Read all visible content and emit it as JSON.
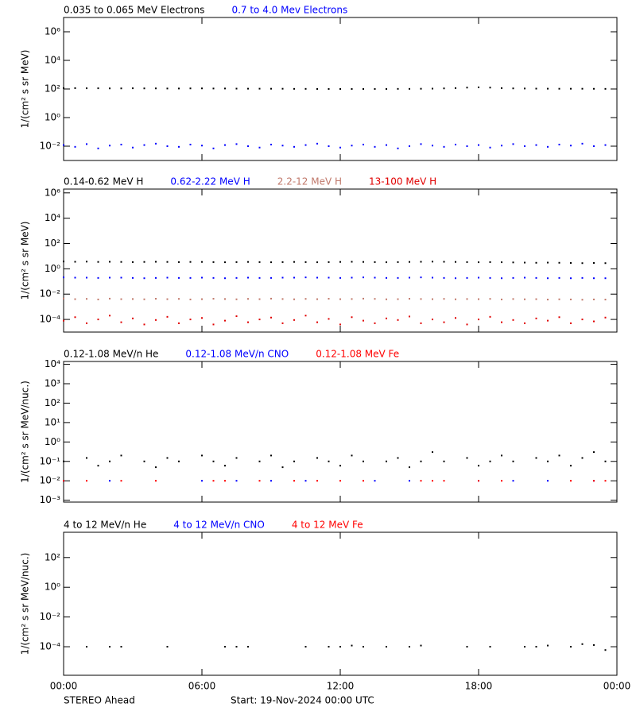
{
  "chart_data": [
    {
      "type": "scatter",
      "log_scale": true,
      "ylabel": "1/(cm² s sr MeV)",
      "xlim": [
        0,
        24
      ],
      "xticks": [
        0,
        6,
        12,
        18,
        24
      ],
      "ylim": [
        0.001,
        10000000
      ],
      "yticks": [
        {
          "value": 0.01,
          "label": "10⁻²"
        },
        {
          "value": 1,
          "label": "10⁰"
        },
        {
          "value": 100,
          "label": "10²"
        },
        {
          "value": 10000,
          "label": "10⁴"
        },
        {
          "value": 1000000,
          "label": "10⁶"
        }
      ],
      "x": [
        0,
        0.5,
        1,
        1.5,
        2,
        2.5,
        3,
        3.5,
        4,
        4.5,
        5,
        5.5,
        6,
        6.5,
        7,
        7.5,
        8,
        8.5,
        9,
        9.5,
        10,
        10.5,
        11,
        11.5,
        12,
        12.5,
        13,
        13.5,
        14,
        14.5,
        15,
        15.5,
        16,
        16.5,
        17,
        17.5,
        18,
        18.5,
        19,
        19.5,
        20,
        20.5,
        21,
        21.5,
        22,
        22.5,
        23,
        23.5
      ],
      "series": [
        {
          "name": "0.035 to 0.065 MeV Electrons",
          "color": "#000000",
          "values": [
            115,
            115,
            112,
            112,
            110,
            110,
            112,
            110,
            110,
            108,
            108,
            110,
            110,
            108,
            108,
            106,
            105,
            105,
            104,
            104,
            102,
            102,
            100,
            100,
            100,
            100,
            100,
            100,
            100,
            102,
            102,
            104,
            106,
            110,
            115,
            125,
            130,
            125,
            115,
            110,
            108,
            106,
            105,
            104,
            104,
            104,
            103,
            102
          ]
        },
        {
          "name": "0.7 to 4.0 Mev Electrons",
          "color": "#0000ff",
          "values": [
            0.012,
            0.009,
            0.014,
            0.007,
            0.011,
            0.013,
            0.008,
            0.012,
            0.015,
            0.01,
            0.009,
            0.013,
            0.011,
            0.007,
            0.012,
            0.014,
            0.01,
            0.008,
            0.013,
            0.011,
            0.009,
            0.012,
            0.015,
            0.01,
            0.008,
            0.011,
            0.013,
            0.009,
            0.012,
            0.007,
            0.01,
            0.014,
            0.011,
            0.009,
            0.013,
            0.01,
            0.012,
            0.008,
            0.011,
            0.014,
            0.01,
            0.012,
            0.009,
            0.013,
            0.011,
            0.015,
            0.01,
            0.012
          ]
        }
      ]
    },
    {
      "type": "scatter",
      "log_scale": true,
      "ylabel": "1/(cm² s sr MeV)",
      "xlim": [
        0,
        24
      ],
      "xticks": [
        0,
        6,
        12,
        18,
        24
      ],
      "ylim": [
        1e-05,
        2000000
      ],
      "yticks": [
        {
          "value": 0.0001,
          "label": "10⁻⁴"
        },
        {
          "value": 0.01,
          "label": "10⁻²"
        },
        {
          "value": 1,
          "label": "10⁰"
        },
        {
          "value": 100,
          "label": "10²"
        },
        {
          "value": 10000,
          "label": "10⁴"
        },
        {
          "value": 1000000,
          "label": "10⁶"
        }
      ],
      "x": [
        0,
        0.5,
        1,
        1.5,
        2,
        2.5,
        3,
        3.5,
        4,
        4.5,
        5,
        5.5,
        6,
        6.5,
        7,
        7.5,
        8,
        8.5,
        9,
        9.5,
        10,
        10.5,
        11,
        11.5,
        12,
        12.5,
        13,
        13.5,
        14,
        14.5,
        15,
        15.5,
        16,
        16.5,
        17,
        17.5,
        18,
        18.5,
        19,
        19.5,
        20,
        20.5,
        21,
        21.5,
        22,
        22.5,
        23,
        23.5
      ],
      "series": [
        {
          "name": "0.14-0.62 MeV H",
          "color": "#000000",
          "values": [
            3.8,
            3.6,
            3.7,
            3.5,
            3.6,
            3.5,
            3.4,
            3.5,
            3.6,
            3.5,
            3.4,
            3.5,
            3.5,
            3.4,
            3.3,
            3.4,
            3.5,
            3.4,
            3.3,
            3.4,
            3.5,
            3.4,
            3.3,
            3.4,
            3.5,
            3.6,
            3.5,
            3.4,
            3.3,
            3.4,
            3.5,
            3.6,
            3.7,
            3.6,
            3.5,
            3.4,
            3.3,
            3.4,
            3.3,
            3.2,
            3.1,
            3,
            3.1,
            3,
            2.9,
            2.8,
            2.9,
            2.8
          ]
        },
        {
          "name": "0.62-2.22 MeV H",
          "color": "#0000ff",
          "values": [
            0.21,
            0.2,
            0.2,
            0.19,
            0.2,
            0.2,
            0.19,
            0.18,
            0.19,
            0.2,
            0.19,
            0.19,
            0.2,
            0.19,
            0.18,
            0.19,
            0.2,
            0.19,
            0.19,
            0.2,
            0.2,
            0.21,
            0.2,
            0.2,
            0.19,
            0.2,
            0.21,
            0.2,
            0.19,
            0.19,
            0.2,
            0.21,
            0.2,
            0.19,
            0.18,
            0.19,
            0.2,
            0.19,
            0.18,
            0.19,
            0.2,
            0.19,
            0.18,
            0.19,
            0.18,
            0.19,
            0.18,
            0.18
          ]
        },
        {
          "name": "2.2-12 MeV H",
          "color": "#c0786a",
          "values": [
            0.0045,
            0.004,
            0.0042,
            0.0038,
            0.0044,
            0.004,
            0.0041,
            0.0039,
            0.0043,
            0.004,
            0.0042,
            0.0038,
            0.004,
            0.0043,
            0.0041,
            0.0039,
            0.0042,
            0.004,
            0.0044,
            0.0041,
            0.0039,
            0.0042,
            0.004,
            0.0043,
            0.004,
            0.0041,
            0.0044,
            0.0042,
            0.0039,
            0.004,
            0.0043,
            0.0041,
            0.004,
            0.0042,
            0.0039,
            0.0041,
            0.004,
            0.0042,
            0.0038,
            0.0041,
            0.0039,
            0.004,
            0.0037,
            0.0039,
            0.0038,
            0.0036,
            0.0038,
            0.0037
          ]
        },
        {
          "name": "13-100 MeV H",
          "color": "#e00000",
          "values": [
            8e-05,
            0.00015,
            5e-05,
            0.0001,
            0.0002,
            6e-05,
            0.00012,
            4e-05,
            9e-05,
            0.00016,
            5e-05,
            0.0001,
            0.00013,
            4e-05,
            8e-05,
            0.00018,
            6e-05,
            0.0001,
            0.00014,
            5e-05,
            9e-05,
            0.0002,
            6e-05,
            0.00011,
            4e-05,
            0.00015,
            8e-05,
            5e-05,
            0.00012,
            9e-05,
            0.00017,
            5e-05,
            0.0001,
            6e-05,
            0.00013,
            4e-05,
            0.0001,
            0.00016,
            6e-05,
            9e-05,
            5e-05,
            0.00012,
            8e-05,
            0.00015,
            5e-05,
            0.0001,
            7e-05,
            0.00014
          ]
        }
      ]
    },
    {
      "type": "scatter",
      "log_scale": true,
      "ylabel": "1/(cm² s sr MeV/nuc.)",
      "xlim": [
        0,
        24
      ],
      "xticks": [
        0,
        6,
        12,
        18,
        24
      ],
      "ylim": [
        0.0008,
        14000
      ],
      "yticks": [
        {
          "value": 0.001,
          "label": "10⁻³"
        },
        {
          "value": 0.01,
          "label": "10⁻²"
        },
        {
          "value": 0.1,
          "label": "10⁻¹"
        },
        {
          "value": 1,
          "label": "10⁰"
        },
        {
          "value": 10,
          "label": "10¹"
        },
        {
          "value": 100,
          "label": "10²"
        },
        {
          "value": 1000,
          "label": "10³"
        },
        {
          "value": 10000,
          "label": "10⁴"
        }
      ],
      "x": [
        0,
        0.5,
        1,
        1.5,
        2,
        2.5,
        3,
        3.5,
        4,
        4.5,
        5,
        5.5,
        6,
        6.5,
        7,
        7.5,
        8,
        8.5,
        9,
        9.5,
        10,
        10.5,
        11,
        11.5,
        12,
        12.5,
        13,
        13.5,
        14,
        14.5,
        15,
        15.5,
        16,
        16.5,
        17,
        17.5,
        18,
        18.5,
        19,
        19.5,
        20,
        20.5,
        21,
        21.5,
        22,
        22.5,
        23,
        23.5
      ],
      "series": [
        {
          "name": "0.12-1.08 MeV/n He",
          "color": "#000000",
          "values": [
            0.1,
            null,
            0.15,
            0.06,
            0.1,
            0.2,
            null,
            0.1,
            0.05,
            0.15,
            0.1,
            null,
            0.2,
            0.1,
            0.06,
            0.15,
            null,
            0.1,
            0.2,
            0.05,
            0.1,
            null,
            0.15,
            0.1,
            0.06,
            0.2,
            0.1,
            null,
            0.1,
            0.15,
            0.05,
            0.1,
            0.3,
            0.1,
            null,
            0.15,
            0.06,
            0.1,
            0.2,
            0.1,
            null,
            0.15,
            0.1,
            0.2,
            0.06,
            0.15,
            0.3,
            0.1
          ]
        },
        {
          "name": "0.12-1.08 MeV/n CNO",
          "color": "#0000ff",
          "values": [
            0.01,
            null,
            null,
            null,
            0.01,
            null,
            null,
            null,
            null,
            null,
            null,
            null,
            0.01,
            null,
            null,
            0.01,
            null,
            null,
            0.01,
            null,
            null,
            0.01,
            null,
            null,
            null,
            null,
            null,
            0.01,
            null,
            null,
            0.01,
            null,
            null,
            null,
            null,
            null,
            0.01,
            null,
            null,
            0.01,
            null,
            null,
            0.01,
            null,
            null,
            null,
            0.01,
            null
          ]
        },
        {
          "name": "0.12-1.08 MeV Fe",
          "color": "#ff0000",
          "values": [
            0.01,
            null,
            0.01,
            null,
            null,
            0.01,
            null,
            null,
            0.01,
            null,
            null,
            null,
            null,
            0.01,
            0.01,
            null,
            null,
            0.01,
            null,
            null,
            0.01,
            null,
            0.01,
            null,
            0.01,
            null,
            0.01,
            null,
            null,
            null,
            null,
            0.01,
            0.01,
            0.01,
            null,
            null,
            0.01,
            null,
            0.01,
            null,
            null,
            null,
            null,
            null,
            0.01,
            null,
            0.01,
            0.01
          ]
        }
      ]
    },
    {
      "type": "scatter",
      "log_scale": true,
      "ylabel": "1/(cm² s sr MeV/nuc.)",
      "xlim": [
        0,
        24
      ],
      "xticks": [
        {
          "value": 0,
          "label": "00:00"
        },
        {
          "value": 6,
          "label": "06:00"
        },
        {
          "value": 12,
          "label": "12:00"
        },
        {
          "value": 18,
          "label": "18:00"
        },
        {
          "value": 24,
          "label": "00:00"
        }
      ],
      "ylim": [
        1.2e-06,
        5000
      ],
      "yticks": [
        {
          "value": 0.0001,
          "label": "10⁻⁴"
        },
        {
          "value": 0.01,
          "label": "10⁻²"
        },
        {
          "value": 1,
          "label": "10⁰"
        },
        {
          "value": 100,
          "label": "10²"
        }
      ],
      "x": [
        0,
        0.5,
        1,
        1.5,
        2,
        2.5,
        3,
        3.5,
        4,
        4.5,
        5,
        5.5,
        6,
        6.5,
        7,
        7.5,
        8,
        8.5,
        9,
        9.5,
        10,
        10.5,
        11,
        11.5,
        12,
        12.5,
        13,
        13.5,
        14,
        14.5,
        15,
        15.5,
        16,
        16.5,
        17,
        17.5,
        18,
        18.5,
        19,
        19.5,
        20,
        20.5,
        21,
        21.5,
        22,
        22.5,
        23,
        23.5
      ],
      "series": [
        {
          "name": "4 to 12 MeV/n He",
          "color": "#000000",
          "values": [
            null,
            null,
            0.0001,
            null,
            0.0001,
            0.0001,
            null,
            null,
            null,
            0.0001,
            null,
            null,
            null,
            null,
            0.0001,
            0.0001,
            0.0001,
            null,
            null,
            null,
            null,
            0.0001,
            null,
            0.0001,
            0.0001,
            0.00012,
            0.0001,
            null,
            0.0001,
            null,
            0.0001,
            0.00012,
            null,
            null,
            null,
            0.0001,
            null,
            0.0001,
            null,
            null,
            0.0001,
            0.0001,
            0.00012,
            null,
            0.0001,
            0.00015,
            0.00013,
            6e-05
          ]
        },
        {
          "name": "4 to 12 MeV/n CNO",
          "color": "#0000ff",
          "values": [
            null,
            null,
            null,
            null,
            null,
            null,
            null,
            null,
            null,
            null,
            null,
            null,
            null,
            null,
            null,
            null,
            null,
            null,
            null,
            null,
            null,
            null,
            null,
            null,
            null,
            null,
            null,
            null,
            null,
            null,
            null,
            null,
            null,
            null,
            null,
            null,
            null,
            null,
            null,
            null,
            null,
            null,
            null,
            null,
            null,
            null,
            null,
            null
          ]
        },
        {
          "name": "4 to 12 MeV Fe",
          "color": "#ff0000",
          "values": [
            null,
            null,
            null,
            null,
            null,
            null,
            null,
            null,
            null,
            null,
            null,
            null,
            null,
            null,
            null,
            null,
            null,
            null,
            null,
            null,
            null,
            null,
            null,
            null,
            null,
            null,
            null,
            null,
            null,
            null,
            null,
            null,
            null,
            null,
            null,
            null,
            null,
            null,
            null,
            null,
            null,
            null,
            null,
            null,
            null,
            null,
            null,
            null
          ]
        }
      ]
    }
  ],
  "footer_left": "STEREO Ahead",
  "footer_center": "Start: 19-Nov-2024 00:00 UTC"
}
